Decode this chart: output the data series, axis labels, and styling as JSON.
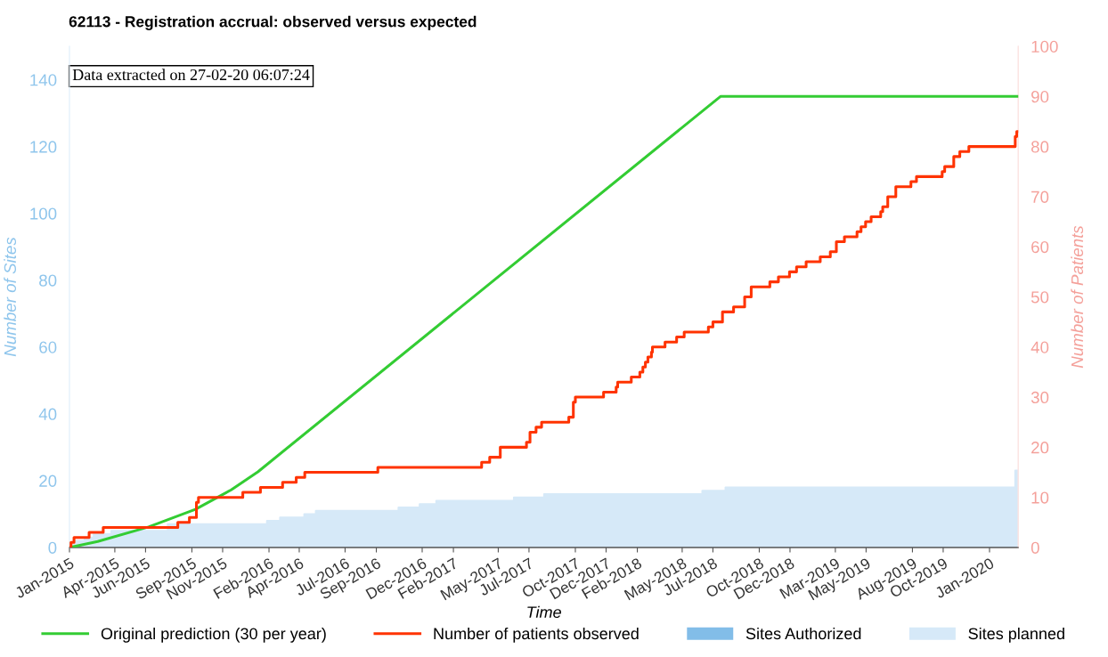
{
  "chart_data": {
    "type": "line",
    "title": "62113 - Registration accrual: observed versus expected",
    "xlabel": "Time",
    "ylabel": "Number of Sites",
    "y2label": "Number of Patients",
    "annotations": [
      "Data extracted on 27-02-20 06:07:24"
    ],
    "xlim": [
      "2015-01-01",
      "2020-02-27"
    ],
    "xticks": [
      {
        "value": "2015-01-01",
        "label": "Jan-2015"
      },
      {
        "value": "2015-04-01",
        "label": "Apr-2015"
      },
      {
        "value": "2015-06-01",
        "label": "Jun-2015"
      },
      {
        "value": "2015-09-01",
        "label": "Sep-2015"
      },
      {
        "value": "2015-11-01",
        "label": "Nov-2015"
      },
      {
        "value": "2016-02-01",
        "label": "Feb-2016"
      },
      {
        "value": "2016-04-01",
        "label": "Apr-2016"
      },
      {
        "value": "2016-07-01",
        "label": "Jul-2016"
      },
      {
        "value": "2016-09-01",
        "label": "Sep-2016"
      },
      {
        "value": "2016-12-01",
        "label": "Dec-2016"
      },
      {
        "value": "2017-02-01",
        "label": "Feb-2017"
      },
      {
        "value": "2017-05-01",
        "label": "May-2017"
      },
      {
        "value": "2017-07-01",
        "label": "Jul-2017"
      },
      {
        "value": "2017-10-01",
        "label": "Oct-2017"
      },
      {
        "value": "2017-12-01",
        "label": "Dec-2017"
      },
      {
        "value": "2018-02-01",
        "label": "Feb-2018"
      },
      {
        "value": "2018-05-01",
        "label": "May-2018"
      },
      {
        "value": "2018-07-01",
        "label": "Jul-2018"
      },
      {
        "value": "2018-10-01",
        "label": "Oct-2018"
      },
      {
        "value": "2018-12-01",
        "label": "Dec-2018"
      },
      {
        "value": "2019-03-01",
        "label": "Mar-2019"
      },
      {
        "value": "2019-05-01",
        "label": "May-2019"
      },
      {
        "value": "2019-08-01",
        "label": "Aug-2019"
      },
      {
        "value": "2019-10-01",
        "label": "Oct-2019"
      },
      {
        "value": "2020-01-01",
        "label": "Jan-2020"
      }
    ],
    "ylim": [
      0,
      150
    ],
    "yticks": [
      0,
      20,
      40,
      60,
      80,
      100,
      120,
      140
    ],
    "y2lim": [
      0,
      100
    ],
    "y2ticks": [
      0,
      10,
      20,
      30,
      40,
      50,
      60,
      70,
      80,
      90,
      100
    ],
    "grid": false,
    "legend": "bottom",
    "marker": "none",
    "series": [
      {
        "name": "Original prediction (30 per year)",
        "axis": "y2",
        "color": "#33cc33",
        "x": [
          "2015-01-01",
          "2015-02-26",
          "2015-06-07",
          "2015-09-08",
          "2015-11-18",
          "2016-01-10",
          "2018-07-16",
          "2020-02-27"
        ],
        "values": [
          0,
          1.2,
          4.1,
          7.6,
          11.5,
          15.1,
          90,
          90
        ]
      },
      {
        "name": "Number of patients observed",
        "type": "step",
        "axis": "y2",
        "color": "#ff3300",
        "x": [
          "2015-01-01",
          "2015-01-04",
          "2015-01-10",
          "2015-02-09",
          "2015-03-09",
          "2015-08-04",
          "2015-08-27",
          "2015-09-10",
          "2015-09-14",
          "2015-12-11",
          "2016-01-15",
          "2016-02-28",
          "2016-03-26",
          "2016-04-12",
          "2016-09-04",
          "2017-03-29",
          "2017-04-14",
          "2017-05-05",
          "2017-06-26",
          "2017-07-03",
          "2017-07-15",
          "2017-07-26",
          "2017-09-18",
          "2017-09-27",
          "2017-10-01",
          "2017-11-26",
          "2017-12-21",
          "2017-12-24",
          "2018-01-20",
          "2018-02-06",
          "2018-02-12",
          "2018-02-17",
          "2018-02-22",
          "2018-03-01",
          "2018-03-03",
          "2018-03-28",
          "2018-04-20",
          "2018-05-05",
          "2018-06-22",
          "2018-07-01",
          "2018-07-20",
          "2018-08-11",
          "2018-09-02",
          "2018-09-15",
          "2018-10-22",
          "2018-11-08",
          "2018-11-30",
          "2018-12-14",
          "2019-01-02",
          "2019-01-30",
          "2019-02-19",
          "2019-03-03",
          "2019-03-19",
          "2019-04-13",
          "2019-04-21",
          "2019-04-30",
          "2019-05-11",
          "2019-05-30",
          "2019-06-03",
          "2019-06-13",
          "2019-06-29",
          "2019-07-29",
          "2019-08-09",
          "2019-09-29",
          "2019-10-04",
          "2019-10-22",
          "2019-11-03",
          "2019-11-21",
          "2020-02-21",
          "2020-02-24",
          "2020-02-26"
        ],
        "values": [
          0,
          1,
          2,
          3,
          4,
          5,
          6,
          9,
          10,
          11,
          12,
          13,
          14,
          15,
          16,
          17,
          18,
          20,
          21,
          23,
          24,
          25,
          26,
          29,
          30,
          31,
          32,
          33,
          34,
          35,
          36,
          37,
          38,
          39,
          40,
          41,
          42,
          43,
          44,
          45,
          47,
          48,
          50,
          52,
          53,
          54,
          55,
          56,
          57,
          58,
          59,
          61,
          62,
          63,
          64,
          65,
          66,
          67,
          68,
          70,
          72,
          73,
          74,
          75,
          76,
          78,
          79,
          80,
          82,
          83,
          83
        ]
      },
      {
        "name": "Sites Authorized",
        "type": "area",
        "axis": "y",
        "color": "#82bde8"
      },
      {
        "name": "Sites planned",
        "type": "area",
        "axis": "y",
        "color": "#d6e9f8",
        "x": [
          "2015-01-01",
          "2015-01-04",
          "2015-01-13",
          "2015-01-31",
          "2015-02-18",
          "2015-03-25",
          "2015-07-15",
          "2016-01-28",
          "2016-02-23",
          "2016-04-11",
          "2016-05-04",
          "2016-10-15",
          "2016-11-26",
          "2016-12-29",
          "2017-06-01",
          "2017-07-31",
          "2018-06-10",
          "2018-07-26",
          "2020-02-21",
          "2020-02-27"
        ],
        "values": [
          0,
          1,
          2,
          3,
          4,
          5,
          7,
          8,
          9,
          10,
          11,
          12,
          13,
          14,
          15,
          16,
          17,
          18,
          23,
          23
        ]
      }
    ]
  }
}
